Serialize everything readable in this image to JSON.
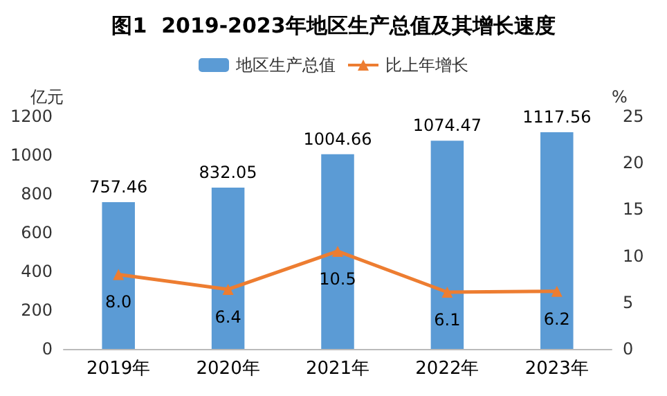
{
  "chart_data": {
    "type": "bar",
    "title": "图1  2019-2023年地区生产总值及其增长速度",
    "ylabel": "亿元",
    "y2label": "%",
    "categories": [
      "2019年",
      "2020年",
      "2021年",
      "2022年",
      "2023年"
    ],
    "series": [
      {
        "name": "地区生产总值",
        "color": "#5b9bd5",
        "values": [
          757.46,
          832.05,
          1004.66,
          1074.47,
          1117.56
        ],
        "value_labels": [
          "757.46",
          "832.05",
          "1004.66",
          "1074.47",
          "1117.56"
        ]
      },
      {
        "name": "比上年增长",
        "type": "line",
        "axis": "y2",
        "color": "#ed7d31",
        "marker": "triangle",
        "values": [
          8.0,
          6.4,
          10.5,
          6.1,
          6.2
        ],
        "value_labels": [
          "8.0",
          "6.4",
          "10.5",
          "6.1",
          "6.2"
        ]
      }
    ],
    "ylim": [
      0,
      1200
    ],
    "yticks": [
      0,
      200,
      400,
      600,
      800,
      1000,
      1200
    ],
    "y2lim": [
      0,
      25
    ],
    "y2ticks": [
      0,
      5,
      10,
      15,
      20,
      25
    ],
    "legend": "top",
    "grid": false
  }
}
